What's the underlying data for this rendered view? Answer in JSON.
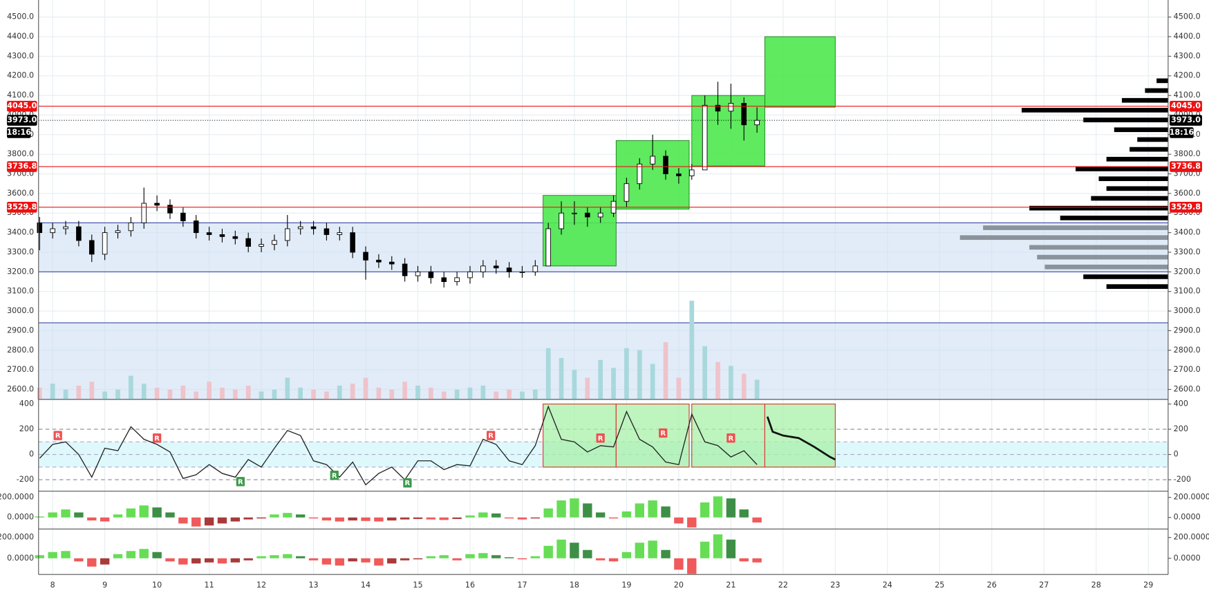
{
  "chart_data": [
    {
      "type": "candlestick",
      "x": [
        7.75,
        8,
        8.25,
        8.5,
        8.75,
        9,
        9.25,
        9.5,
        9.75,
        10,
        10.25,
        10.5,
        10.75,
        11,
        11.25,
        11.5,
        11.75,
        12,
        12.25,
        12.5,
        12.75,
        13,
        13.25,
        13.5,
        13.75,
        14,
        14.25,
        14.5,
        14.75,
        15,
        15.25,
        15.5,
        15.75,
        16,
        16.25,
        16.5,
        16.75,
        17,
        17.25,
        17.5,
        17.75,
        18,
        18.25,
        18.5,
        18.75,
        19,
        19.25,
        19.5,
        19.75,
        20,
        20.25,
        20.5,
        20.75,
        21,
        21.25,
        21.5
      ],
      "open": [
        3450,
        3400,
        3420,
        3430,
        3360,
        3290,
        3400,
        3410,
        3450,
        3550,
        3540,
        3500,
        3460,
        3400,
        3390,
        3380,
        3370,
        3330,
        3340,
        3360,
        3420,
        3430,
        3420,
        3390,
        3400,
        3300,
        3260,
        3250,
        3240,
        3180,
        3200,
        3170,
        3150,
        3170,
        3200,
        3230,
        3220,
        3200,
        3200,
        3230,
        3420,
        3500,
        3500,
        3480,
        3500,
        3560,
        3650,
        3750,
        3790,
        3700,
        3690,
        3720,
        4050,
        4020,
        4060,
        3950
      ],
      "high": [
        3480,
        3450,
        3460,
        3460,
        3390,
        3430,
        3440,
        3480,
        3630,
        3590,
        3570,
        3530,
        3490,
        3430,
        3420,
        3410,
        3400,
        3370,
        3390,
        3490,
        3460,
        3460,
        3450,
        3430,
        3430,
        3330,
        3290,
        3280,
        3270,
        3230,
        3230,
        3200,
        3200,
        3230,
        3260,
        3260,
        3250,
        3230,
        3260,
        3450,
        3560,
        3560,
        3530,
        3530,
        3590,
        3680,
        3780,
        3900,
        3820,
        3730,
        3750,
        4100,
        4170,
        4160,
        4090,
        4040
      ],
      "low": [
        3310,
        3370,
        3390,
        3330,
        3250,
        3260,
        3370,
        3380,
        3420,
        3510,
        3470,
        3430,
        3370,
        3360,
        3350,
        3340,
        3300,
        3300,
        3310,
        3330,
        3390,
        3390,
        3360,
        3360,
        3270,
        3160,
        3220,
        3210,
        3150,
        3150,
        3140,
        3120,
        3130,
        3140,
        3170,
        3190,
        3170,
        3170,
        3180,
        3230,
        3390,
        3440,
        3430,
        3450,
        3480,
        3530,
        3620,
        3720,
        3670,
        3650,
        3670,
        3720,
        3950,
        3930,
        3870,
        3910
      ],
      "close": [
        3400,
        3420,
        3430,
        3360,
        3290,
        3400,
        3410,
        3450,
        3550,
        3540,
        3500,
        3460,
        3400,
        3390,
        3380,
        3370,
        3330,
        3340,
        3360,
        3420,
        3430,
        3420,
        3390,
        3400,
        3300,
        3260,
        3250,
        3240,
        3180,
        3200,
        3170,
        3150,
        3170,
        3200,
        3230,
        3220,
        3200,
        3200,
        3230,
        3420,
        3500,
        3500,
        3480,
        3500,
        3560,
        3650,
        3750,
        3790,
        3700,
        3690,
        3720,
        4050,
        4020,
        4060,
        3950,
        3973
      ],
      "volume": [
        60,
        80,
        50,
        70,
        90,
        40,
        50,
        120,
        80,
        60,
        50,
        70,
        40,
        90,
        60,
        50,
        70,
        40,
        50,
        110,
        60,
        50,
        40,
        70,
        80,
        110,
        60,
        50,
        90,
        70,
        60,
        40,
        50,
        60,
        70,
        40,
        50,
        40,
        50,
        260,
        210,
        150,
        110,
        200,
        160,
        260,
        250,
        180,
        290,
        110,
        500,
        270,
        190,
        170,
        130,
        100
      ],
      "vlim": [
        0,
        500
      ],
      "up_color": "#ffffff",
      "down_color": "#000000",
      "wick_color": "#000000",
      "volume_up_color": "#a8d8dc",
      "volume_down_color": "#efc3cb",
      "xlim": [
        7.73,
        29.38
      ],
      "xticks": [
        8,
        9,
        10,
        11,
        12,
        13,
        14,
        15,
        16,
        17,
        18,
        19,
        20,
        21,
        22,
        23,
        24,
        25,
        26,
        27,
        28,
        29
      ],
      "ylim": [
        2549,
        4587
      ],
      "yticks": [
        {
          "value": 2600,
          "label": "2600.0"
        },
        {
          "value": 2700,
          "label": "2700.0"
        },
        {
          "value": 2800,
          "label": "2800.0"
        },
        {
          "value": 2900,
          "label": "2900.0"
        },
        {
          "value": 3000,
          "label": "3000.0"
        },
        {
          "value": 3100,
          "label": "3100.0"
        },
        {
          "value": 3200,
          "label": "3200.0"
        },
        {
          "value": 3300,
          "label": "3300.0"
        },
        {
          "value": 3400,
          "label": "3400.0"
        },
        {
          "value": 3500,
          "label": "3500.0"
        },
        {
          "value": 3600,
          "label": "3600.0"
        },
        {
          "value": 3700,
          "label": "3700.0"
        },
        {
          "value": 3800,
          "label": "3800.0"
        },
        {
          "value": 3900,
          "label": "3900.0"
        },
        {
          "value": 4000,
          "label": "4000.0"
        },
        {
          "value": 4100,
          "label": "4100.0"
        },
        {
          "value": 4200,
          "label": "4200.0"
        },
        {
          "value": 4300,
          "label": "4300.0"
        },
        {
          "value": 4400,
          "label": "4400.0"
        },
        {
          "value": 4500,
          "label": "4500.0"
        }
      ],
      "grid": true,
      "zones": [
        {
          "from": 3200,
          "to": 3450
        },
        {
          "from": 2549,
          "to": 2940
        }
      ],
      "zone_color": "#3848a8",
      "boxes": [
        {
          "x0": 17.4,
          "x1": 18.8,
          "y0": 3230,
          "y1": 3590
        },
        {
          "x0": 18.8,
          "x1": 20.2,
          "y0": 3520,
          "y1": 3870
        },
        {
          "x0": 20.25,
          "x1": 21.65,
          "y0": 3740,
          "y1": 4100
        },
        {
          "x0": 21.65,
          "x1": 23.0,
          "y0": 4040,
          "y1": 4400
        }
      ],
      "box_color": "#4ee84e",
      "levels": [
        {
          "value": 4045,
          "label": "4045.0",
          "color": "#ee1111"
        },
        {
          "value": 3973,
          "label": "3973.0",
          "color": "#000000",
          "dotted": true
        },
        {
          "value": 3736.8,
          "label": "3736.8",
          "color": "#ee1111"
        },
        {
          "value": 3529.8,
          "label": "3529.8",
          "color": "#ee1111"
        }
      ],
      "time_label": "18:16",
      "profile": {
        "levels": [
          3125,
          3175,
          3225,
          3275,
          3325,
          3375,
          3425,
          3475,
          3525,
          3575,
          3625,
          3675,
          3725,
          3775,
          3825,
          3875,
          3925,
          3975,
          4025,
          4075,
          4125,
          4175
        ],
        "values": [
          80,
          110,
          160,
          170,
          180,
          270,
          240,
          140,
          180,
          100,
          80,
          90,
          120,
          80,
          50,
          40,
          70,
          110,
          190,
          60,
          30,
          15
        ],
        "color": "#000000",
        "zone_color": "#8a939c"
      }
    },
    {
      "type": "line",
      "x": [
        7.75,
        8,
        8.25,
        8.5,
        8.75,
        9,
        9.25,
        9.5,
        9.75,
        10,
        10.25,
        10.5,
        10.75,
        11,
        11.25,
        11.5,
        11.75,
        12,
        12.25,
        12.5,
        12.75,
        13,
        13.25,
        13.5,
        13.75,
        14,
        14.25,
        14.5,
        14.75,
        15,
        15.25,
        15.5,
        15.75,
        16,
        16.25,
        16.5,
        16.75,
        17,
        17.25,
        17.5,
        17.75,
        18,
        18.25,
        18.5,
        18.75,
        19,
        19.25,
        19.5,
        19.75,
        20,
        20.25,
        20.5,
        20.75,
        21,
        21.25,
        21.5
      ],
      "values": [
        -30,
        80,
        100,
        0,
        -180,
        50,
        30,
        220,
        120,
        80,
        20,
        -190,
        -160,
        -80,
        -150,
        -180,
        -40,
        -100,
        50,
        190,
        150,
        -50,
        -80,
        -180,
        -60,
        -240,
        -150,
        -100,
        -200,
        -50,
        -50,
        -120,
        -80,
        -90,
        120,
        80,
        -50,
        -80,
        70,
        380,
        120,
        100,
        20,
        70,
        60,
        340,
        120,
        60,
        -60,
        -80,
        320,
        100,
        70,
        -20,
        30,
        -80
      ],
      "color": "#222222",
      "projection": {
        "x": [
          21.7,
          21.8,
          22.0,
          22.3,
          22.6,
          22.9,
          23.0
        ],
        "values": [
          300,
          180,
          150,
          130,
          60,
          -20,
          -40
        ],
        "color": "#111111"
      },
      "ylim": [
        -291,
        430
      ],
      "yticks": [
        400,
        200,
        0,
        -200
      ],
      "dashed": [
        -200,
        -100,
        0,
        100,
        200
      ],
      "band": [
        -100,
        100
      ],
      "band_color": "#dff8fb",
      "boxes": [
        {
          "x0": 17.4,
          "x1": 18.8
        },
        {
          "x0": 18.8,
          "x1": 20.2
        },
        {
          "x0": 20.25,
          "x1": 21.65
        },
        {
          "x0": 21.65,
          "x1": 23.0
        }
      ],
      "box_range": [
        -100,
        400
      ],
      "box_color": "#a8f0a8",
      "box_border": "#e03030",
      "annotations": [
        {
          "x": 8.1,
          "y": 150,
          "text": "R",
          "color": "#f05050"
        },
        {
          "x": 10.0,
          "y": 130,
          "text": "R",
          "color": "#f05050"
        },
        {
          "x": 16.4,
          "y": 150,
          "text": "R",
          "color": "#f05050"
        },
        {
          "x": 18.5,
          "y": 130,
          "text": "R",
          "color": "#f05050"
        },
        {
          "x": 19.7,
          "y": 170,
          "text": "R",
          "color": "#f05050"
        },
        {
          "x": 21.0,
          "y": 130,
          "text": "R",
          "color": "#f05050"
        },
        {
          "x": 11.6,
          "y": -215,
          "text": "R",
          "color": "#3c9a4a"
        },
        {
          "x": 13.4,
          "y": -165,
          "text": "R",
          "color": "#3c9a4a"
        },
        {
          "x": 14.8,
          "y": -225,
          "text": "R",
          "color": "#3c9a4a"
        }
      ]
    },
    {
      "type": "histogram",
      "x": [
        7.75,
        8,
        8.25,
        8.5,
        8.75,
        9,
        9.25,
        9.5,
        9.75,
        10,
        10.25,
        10.5,
        10.75,
        11,
        11.25,
        11.5,
        11.75,
        12,
        12.25,
        12.5,
        12.75,
        13,
        13.25,
        13.5,
        13.75,
        14,
        14.25,
        14.5,
        14.75,
        15,
        15.25,
        15.5,
        15.75,
        16,
        16.25,
        16.5,
        16.75,
        17,
        17.25,
        17.5,
        17.75,
        18,
        18.25,
        18.5,
        18.75,
        19,
        19.25,
        19.5,
        19.75,
        20,
        20.25,
        20.5,
        20.75,
        21,
        21.25,
        21.5
      ],
      "values": [
        10,
        50,
        80,
        50,
        -30,
        -40,
        30,
        90,
        120,
        100,
        50,
        -60,
        -90,
        -80,
        -60,
        -40,
        -20,
        -10,
        30,
        45,
        30,
        -10,
        -30,
        -40,
        -30,
        -35,
        -40,
        -30,
        -20,
        -15,
        -20,
        -25,
        -15,
        20,
        50,
        40,
        -10,
        -20,
        -10,
        90,
        170,
        190,
        140,
        50,
        -10,
        60,
        140,
        170,
        110,
        -60,
        -100,
        150,
        210,
        190,
        80,
        -50
      ],
      "colors": {
        "up": "#66dd55",
        "up_fading": "#3e8f46",
        "down": "#f05a5a",
        "down_fading": "#a83a3a"
      },
      "ylim": [
        -115,
        254
      ],
      "yticks": [
        {
          "value": 200,
          "label": "200.0000"
        },
        {
          "value": 0,
          "label": "0.0000"
        }
      ]
    },
    {
      "type": "histogram",
      "x": [
        7.75,
        8,
        8.25,
        8.5,
        8.75,
        9,
        9.25,
        9.5,
        9.75,
        10,
        10.25,
        10.5,
        10.75,
        11,
        11.25,
        11.5,
        11.75,
        12,
        12.25,
        12.5,
        12.75,
        13,
        13.25,
        13.5,
        13.75,
        14,
        14.25,
        14.5,
        14.75,
        15,
        15.25,
        15.5,
        15.75,
        16,
        16.25,
        16.5,
        16.75,
        17,
        17.25,
        17.5,
        17.75,
        18,
        18.25,
        18.5,
        18.75,
        19,
        19.25,
        19.5,
        19.75,
        20,
        20.25,
        20.5,
        20.75,
        21,
        21.25,
        21.5
      ],
      "values": [
        30,
        60,
        70,
        -30,
        -80,
        -60,
        40,
        70,
        90,
        60,
        -30,
        -60,
        -50,
        -40,
        -50,
        -40,
        -20,
        20,
        30,
        40,
        20,
        -20,
        -60,
        -70,
        -30,
        -40,
        -70,
        -50,
        -20,
        -10,
        20,
        30,
        -20,
        40,
        50,
        30,
        10,
        -10,
        20,
        120,
        180,
        150,
        80,
        -20,
        -30,
        60,
        150,
        170,
        80,
        -110,
        -150,
        160,
        230,
        180,
        -30,
        -40
      ],
      "colors": {
        "up": "#66dd55",
        "up_fading": "#3e8f46",
        "down": "#f05a5a",
        "down_fading": "#a83a3a"
      },
      "ylim": [
        -156,
        267
      ],
      "yticks": [
        {
          "value": 200,
          "label": "200.0000"
        },
        {
          "value": 0,
          "label": "0.0000"
        }
      ]
    }
  ]
}
